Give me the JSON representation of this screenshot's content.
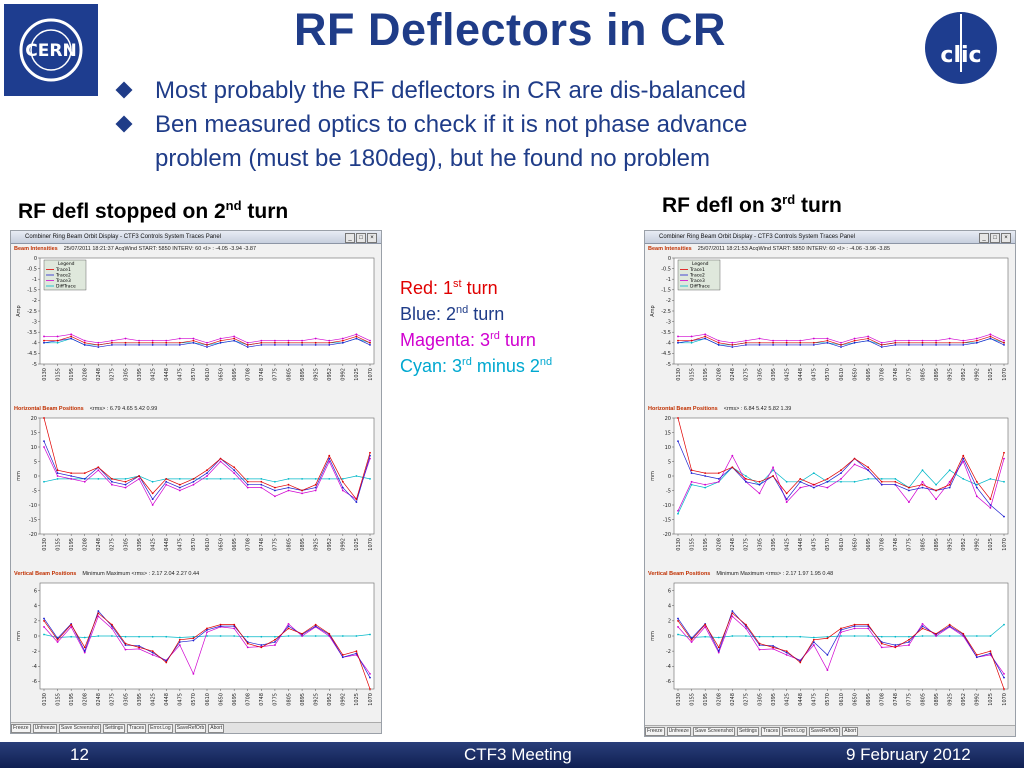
{
  "slide": {
    "title": "RF Deflectors in CR",
    "bullets": [
      "Most probably the RF deflectors in CR are dis-balanced",
      "Ben measured optics to check if it is not phase advance",
      "problem (must be 180deg), but he found no problem"
    ],
    "caption_left": {
      "pre": "RF defl stopped on 2",
      "sup": "nd",
      "post": " turn"
    },
    "caption_right": {
      "pre": "RF defl on 3",
      "sup": "rd",
      "post": " turn"
    },
    "color_legend": [
      {
        "pre": "Red: 1",
        "sup": "st",
        "post": " turn",
        "color": "#e00000"
      },
      {
        "pre": "Blue: 2",
        "sup": "nd",
        "post": " turn",
        "color": "#1f3c88"
      },
      {
        "pre": "Magenta: 3",
        "sup": "rd",
        "post": " turn",
        "color": "#d000d0"
      },
      {
        "pre": "Cyan: 3",
        "sup": "rd",
        "post": " minus 2",
        "sup2": "nd",
        "color": "#00a8d0"
      }
    ],
    "logos": {
      "left": "CERN",
      "right": "clic"
    },
    "footer": {
      "page": "12",
      "meeting": "CTF3 Meeting",
      "date": "9 February 2012"
    }
  },
  "panel": {
    "window_title": "Combiner Ring Beam Orbit Display - CTF3 Controls System   Traces Panel",
    "legend": {
      "title": "Legend",
      "items": [
        "Trace1",
        "Trace2",
        "Trace3",
        "DiffTrace"
      ]
    },
    "x_ticks": [
      "0130",
      "0155",
      "0195",
      "0208",
      "0248",
      "0275",
      "0305",
      "0395",
      "0425",
      "0448",
      "0475",
      "0570",
      "0610",
      "0650",
      "0695",
      "0708",
      "0748",
      "0775",
      "0805",
      "0895",
      "0925",
      "0952",
      "0992",
      "1025",
      "1070"
    ],
    "buttons": [
      "Freeze",
      "Unfreeze",
      "Save Screenshot",
      "Settings",
      "Traces",
      "Error.Log",
      "SaveRefOrb",
      "Abort"
    ],
    "intensities": {
      "label": "Beam Intensities",
      "ylabel": "Amp",
      "ticks": [
        "0",
        "-0.5",
        "-1",
        "-1.5",
        "-2",
        "-2.5",
        "-3",
        "-3.5",
        "-4",
        "-4.5",
        "-5"
      ]
    },
    "horizontal": {
      "label": "Horizontal Beam Positions",
      "ylabel": "mm",
      "ticks": [
        "20",
        "15",
        "10",
        "5",
        "0",
        "-5",
        "-10",
        "-15",
        "-20"
      ]
    },
    "vertical": {
      "label": "Vertical Beam Positions",
      "ylabel": "mm",
      "ticks": [
        "6",
        "4",
        "2",
        "0",
        "-2",
        "-4",
        "-6"
      ],
      "min_label": "Minimum",
      "max_label": "Maximum"
    }
  },
  "panel_left": {
    "intensity_header": {
      "date": "25/07/2011 18:21:37",
      "acq": "AcqWind START: 5850 INTERV: 60",
      "rms": "<I> :  -4.05  -3.94  -3.87"
    },
    "h_rms": "<rms> :  6.79  4.65  5.42  0.99",
    "v_rms": "<rms> :  2.17  2.04  2.27  0.44",
    "series": {
      "intensities": {
        "trace1": [
          -3.9,
          -3.9,
          -3.7,
          -4.0,
          -4.1,
          -4.0,
          -4.0,
          -4.0,
          -4.0,
          -4.0,
          -4.0,
          -3.9,
          -4.1,
          -3.9,
          -3.8,
          -4.1,
          -4.0,
          -4.0,
          -4.0,
          -4.0,
          -4.0,
          -4.0,
          -3.9,
          -3.7,
          -4.0
        ],
        "trace2": [
          -4.0,
          -3.9,
          -3.8,
          -4.1,
          -4.2,
          -4.1,
          -4.1,
          -4.1,
          -4.1,
          -4.1,
          -4.1,
          -4.0,
          -4.2,
          -4.0,
          -3.9,
          -4.2,
          -4.1,
          -4.1,
          -4.1,
          -4.1,
          -4.1,
          -4.1,
          -4.0,
          -3.8,
          -4.1
        ],
        "trace3": [
          -3.7,
          -3.7,
          -3.6,
          -3.9,
          -4.0,
          -3.9,
          -3.8,
          -3.9,
          -3.9,
          -3.9,
          -3.8,
          -3.8,
          -4.0,
          -3.8,
          -3.7,
          -4.0,
          -3.9,
          -3.9,
          -3.9,
          -3.9,
          -3.8,
          -3.9,
          -3.8,
          -3.6,
          -3.9
        ],
        "diff": [
          -4.0,
          -4.0,
          -3.8,
          -4.1,
          -4.1,
          -4.0,
          -4.0,
          -4.0,
          -4.0,
          -4.0,
          -4.0,
          -4.0,
          -4.1,
          -4.0,
          -3.9,
          -4.1,
          -4.0,
          -4.0,
          -4.0,
          -4.0,
          -4.0,
          -4.0,
          -4.0,
          -3.8,
          -4.0
        ]
      },
      "horizontal": {
        "trace1": [
          20,
          2,
          1,
          1,
          3,
          -1,
          -2,
          0,
          -6,
          -1,
          -3,
          -1,
          2,
          6,
          3,
          -2,
          -2,
          -4,
          -3,
          -5,
          -3,
          7,
          -2,
          -8,
          8
        ],
        "trace2": [
          12,
          1,
          0,
          -1,
          3,
          -2,
          -3,
          0,
          -8,
          -2,
          -4,
          -2,
          1,
          6,
          2,
          -3,
          -3,
          -5,
          -4,
          -5,
          -4,
          6,
          -4,
          -9,
          7
        ],
        "trace3": [
          10,
          0,
          -1,
          -2,
          2,
          -3,
          -4,
          -1,
          -10,
          -3,
          -5,
          -3,
          0,
          5,
          1,
          -4,
          -4,
          -7,
          -5,
          -6,
          -5,
          5,
          -5,
          -8,
          6
        ],
        "diff": [
          -2,
          -1,
          -1,
          -1,
          -1,
          -1,
          -1,
          0,
          -2,
          -1,
          -1,
          -1,
          -1,
          -1,
          -1,
          -1,
          -1,
          -2,
          -1,
          -1,
          -1,
          -1,
          -1,
          0,
          -1
        ]
      },
      "vertical": {
        "trace1": [
          2,
          -0.5,
          1.5,
          -1.5,
          3,
          1.5,
          -1,
          -1.5,
          -2,
          -3.5,
          -0.5,
          -0.3,
          1,
          1.5,
          1.5,
          -1,
          -1.5,
          -0.5,
          1,
          0.3,
          1.5,
          0.3,
          -2.5,
          -2,
          -7
        ],
        "trace2": [
          2.3,
          -0.3,
          1.6,
          -2,
          3.3,
          1.3,
          -1.2,
          -1.3,
          -2.2,
          -3.3,
          -0.8,
          -0.6,
          0.8,
          1.3,
          1.3,
          -0.8,
          -1.2,
          -0.8,
          1.3,
          0.2,
          1.3,
          0.2,
          -2.8,
          -2.3,
          -5.5
        ],
        "trace3": [
          1.2,
          -0.8,
          1.2,
          -2.2,
          2.6,
          1,
          -1.8,
          -1.7,
          -2.5,
          -3.2,
          -1.2,
          -5,
          0.5,
          1.2,
          1,
          -1.5,
          -1.4,
          -1.2,
          1.6,
          0,
          1.2,
          0,
          -2.8,
          -2.5,
          -5
        ],
        "diff": [
          0.2,
          -0.2,
          -0.1,
          -0.2,
          0,
          0,
          -0.1,
          -0.1,
          -0.1,
          -0.1,
          -0.2,
          -0.1,
          0,
          0,
          0,
          -0.1,
          -0.1,
          -0.1,
          0,
          0,
          0,
          0,
          0,
          0,
          0.2
        ]
      }
    }
  },
  "panel_right": {
    "intensity_header": {
      "date": "25/07/2011 18:21:53",
      "acq": "AcqWind START: 5850 INTERV: 60",
      "rms": "<I> :  -4.06  -3.96  -3.85"
    },
    "h_rms": "<rms> :  6.84  5.42  5.82  1.39",
    "v_rms": "<rms> :  2.17  1.97  1.95  0.48",
    "series": {
      "intensities": {
        "trace1": [
          -3.9,
          -3.9,
          -3.7,
          -4.0,
          -4.1,
          -4.0,
          -4.0,
          -4.0,
          -4.0,
          -4.0,
          -4.0,
          -3.9,
          -4.1,
          -3.9,
          -3.8,
          -4.1,
          -4.0,
          -4.0,
          -4.0,
          -4.0,
          -4.0,
          -4.0,
          -3.9,
          -3.7,
          -4.0
        ],
        "trace2": [
          -4.0,
          -3.9,
          -3.8,
          -4.1,
          -4.2,
          -4.1,
          -4.1,
          -4.1,
          -4.1,
          -4.1,
          -4.1,
          -4.0,
          -4.2,
          -4.0,
          -3.9,
          -4.2,
          -4.1,
          -4.1,
          -4.1,
          -4.1,
          -4.1,
          -4.1,
          -4.0,
          -3.8,
          -4.1
        ],
        "trace3": [
          -3.7,
          -3.7,
          -3.6,
          -3.9,
          -4.0,
          -3.9,
          -3.8,
          -3.9,
          -3.9,
          -3.9,
          -3.8,
          -3.8,
          -4.0,
          -3.8,
          -3.7,
          -4.0,
          -3.9,
          -3.9,
          -3.9,
          -3.9,
          -3.8,
          -3.9,
          -3.8,
          -3.6,
          -3.9
        ],
        "diff": [
          -4.0,
          -4.0,
          -3.8,
          -4.1,
          -4.1,
          -4.0,
          -4.0,
          -4.0,
          -4.0,
          -4.0,
          -4.0,
          -4.0,
          -4.1,
          -4.0,
          -3.9,
          -4.1,
          -4.0,
          -4.0,
          -4.0,
          -4.0,
          -4.0,
          -4.0,
          -4.0,
          -3.8,
          -4.0
        ]
      },
      "horizontal": {
        "trace1": [
          20,
          2,
          1,
          1,
          3,
          -1,
          -2,
          0,
          -6,
          -1,
          -3,
          -1,
          2,
          6,
          3,
          -2,
          -2,
          -4,
          -3,
          -5,
          -3,
          7,
          -2,
          -8,
          8
        ],
        "trace2": [
          12,
          1,
          0,
          -1,
          3,
          -2,
          -3,
          0,
          -8,
          -2,
          -4,
          -2,
          1,
          6,
          2,
          -3,
          -3,
          -5,
          -4,
          -5,
          -4,
          6,
          -4,
          -10,
          -14
        ],
        "trace3": [
          -12,
          -2,
          -3,
          -2,
          7,
          -2,
          -6,
          3,
          -9,
          -4,
          -3,
          -4,
          -1,
          4,
          2,
          -3,
          -3,
          -9,
          -2,
          -8,
          -2,
          5,
          -7,
          -11,
          6
        ],
        "diff": [
          -13,
          -3,
          -4,
          -2,
          3,
          0,
          -3,
          2,
          -2,
          -2,
          1,
          -2,
          -2,
          -2,
          -1,
          -1,
          -1,
          -4,
          2,
          -3,
          2,
          -1,
          -3,
          -1,
          -2
        ]
      },
      "vertical": {
        "trace1": [
          2,
          -0.5,
          1.5,
          -1.5,
          3,
          1.5,
          -1,
          -1.5,
          -2,
          -3.5,
          -0.5,
          -0.3,
          1,
          1.5,
          1.5,
          -1,
          -1.5,
          -0.5,
          1,
          0.3,
          1.5,
          0.3,
          -2.5,
          -2,
          -7
        ],
        "trace2": [
          2.3,
          -0.3,
          1.6,
          -2,
          3.3,
          1.3,
          -1.2,
          -1.3,
          -2.2,
          -3.3,
          -0.8,
          -2.5,
          0.8,
          1.3,
          1.3,
          -0.8,
          -1.2,
          -0.8,
          1.3,
          0.2,
          1.3,
          0.2,
          -2.8,
          -2.3,
          -5.5
        ],
        "trace3": [
          1.2,
          -0.8,
          1.2,
          -2.2,
          2.6,
          1,
          -1.8,
          -1.7,
          -2.5,
          -3.2,
          -1.2,
          -4.5,
          0.5,
          1,
          1,
          -1.5,
          -1.4,
          -1.2,
          1.6,
          0,
          1.2,
          0,
          -2.8,
          -2.5,
          -5
        ],
        "diff": [
          0.2,
          -0.2,
          -0.1,
          -0.2,
          0,
          0,
          -0.1,
          -0.1,
          -0.1,
          -0.1,
          -0.2,
          -0.1,
          0,
          0,
          0,
          -0.1,
          -0.1,
          -0.1,
          0,
          0,
          0,
          0,
          0,
          0,
          1.5
        ]
      }
    }
  },
  "trace_colors": {
    "trace1": "#e00000",
    "trace2": "#2020d0",
    "trace3": "#d000d0",
    "diff": "#00b8c8"
  }
}
